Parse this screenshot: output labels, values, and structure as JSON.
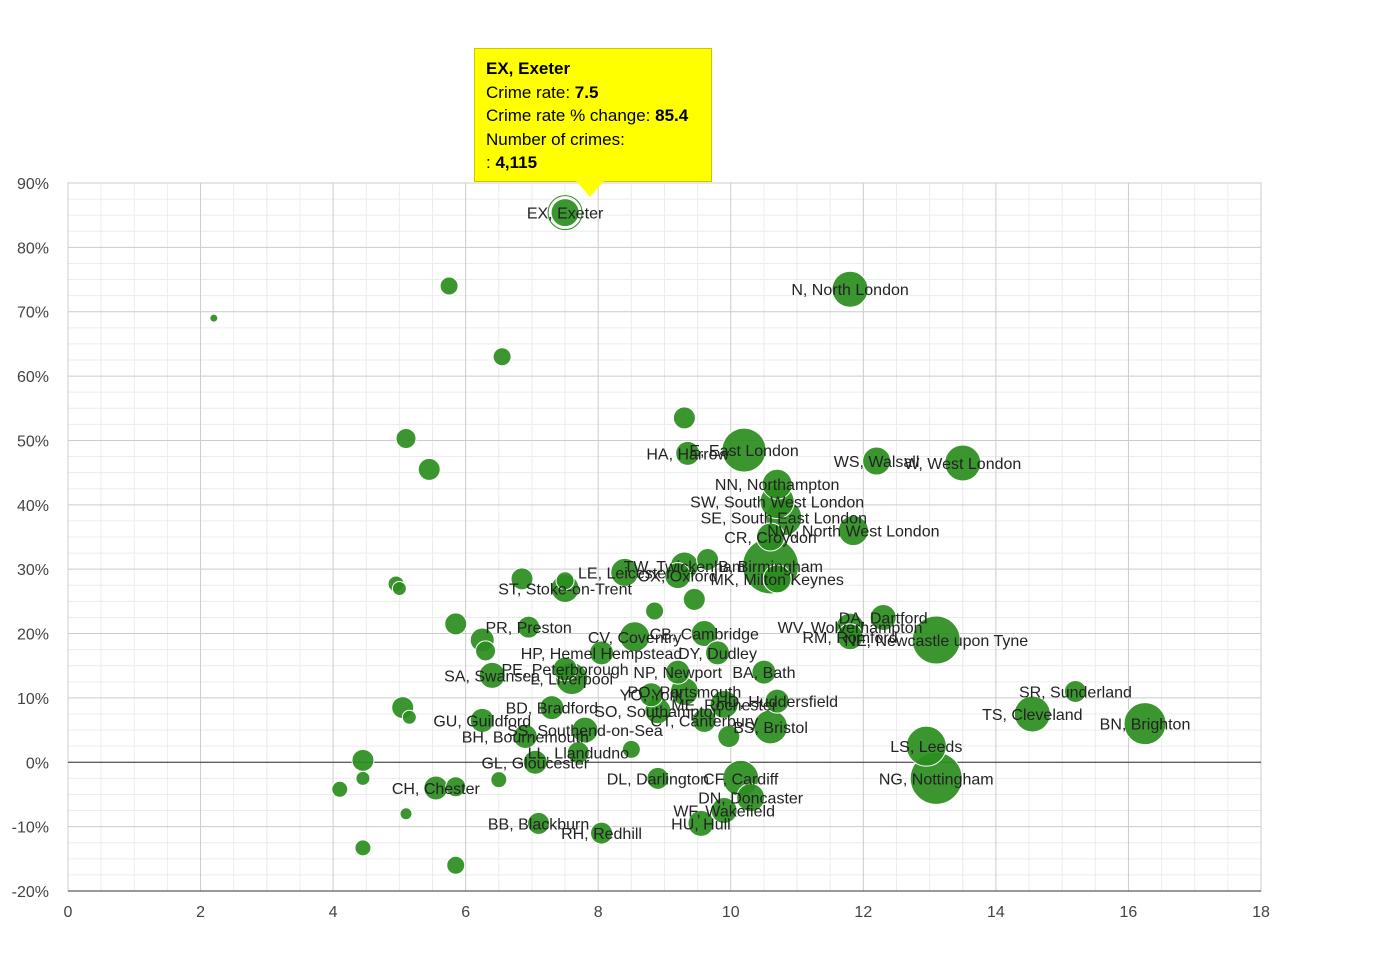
{
  "tooltip": {
    "title": "EX, Exeter",
    "rate_label": "Crime rate: ",
    "rate_value": "7.5",
    "change_label": "Crime rate % change: ",
    "change_value": "85.4",
    "count_label": "Number of crimes:",
    "count_prefix": ": ",
    "count_value": "4,115"
  },
  "chart_data": {
    "type": "scatter",
    "subtype": "bubble",
    "title": "",
    "xlabel": "",
    "ylabel": "",
    "xlim": [
      0,
      18
    ],
    "ylim": [
      -20,
      90
    ],
    "x_ticks": [
      "0",
      "2",
      "4",
      "6",
      "8",
      "10",
      "12",
      "14",
      "16",
      "18"
    ],
    "y_ticks": [
      "-20%",
      "-10%",
      "0%",
      "10%",
      "20%",
      "30%",
      "40%",
      "50%",
      "60%",
      "70%",
      "80%",
      "90%"
    ],
    "grid": true,
    "bubble_color": "#2a8d1e",
    "points": [
      {
        "label": "EX, Exeter",
        "x": 7.5,
        "y": 85.4,
        "size": 14,
        "highlight": true
      },
      {
        "label": "N, North London",
        "x": 11.8,
        "y": 73.5,
        "size": 18
      },
      {
        "label": "E, East London",
        "x": 10.2,
        "y": 48.5,
        "size": 22
      },
      {
        "label": "HA, Harrow",
        "x": 9.35,
        "y": 48,
        "size": 12
      },
      {
        "label": "WS, Walsall",
        "x": 12.2,
        "y": 46.8,
        "size": 14
      },
      {
        "label": "W, West London",
        "x": 13.5,
        "y": 46.5,
        "size": 18
      },
      {
        "label": "NN, Northampton",
        "x": 10.7,
        "y": 43.2,
        "size": 15
      },
      {
        "label": "SW, South West London",
        "x": 10.7,
        "y": 40.5,
        "size": 17
      },
      {
        "label": "SE, South East London",
        "x": 10.8,
        "y": 38,
        "size": 18
      },
      {
        "label": "NW, North West London",
        "x": 11.85,
        "y": 36,
        "size": 15
      },
      {
        "label": "CR, Croydon",
        "x": 10.6,
        "y": 35,
        "size": 14
      },
      {
        "label": "TW, Twickenham",
        "x": 9.3,
        "y": 30.5,
        "size": 14
      },
      {
        "label": "B, Birmingham",
        "x": 10.6,
        "y": 30.5,
        "size": 28
      },
      {
        "label": "MK, Milton Keynes",
        "x": 10.7,
        "y": 28.5,
        "size": 14
      },
      {
        "label": "OX, Oxford",
        "x": 9.2,
        "y": 29,
        "size": 13
      },
      {
        "label": "LE, Leicester",
        "x": 8.4,
        "y": 29.5,
        "size": 14
      },
      {
        "label": "ST, Stoke-on-Trent",
        "x": 7.5,
        "y": 27,
        "size": 14
      },
      {
        "label": "DA, Dartford",
        "x": 12.3,
        "y": 22.5,
        "size": 13
      },
      {
        "label": "WV, Wolverhampton",
        "x": 11.8,
        "y": 21,
        "size": 14
      },
      {
        "label": "RM, Romford",
        "x": 11.8,
        "y": 19.5,
        "size": 13
      },
      {
        "label": "NE, Newcastle upon Tyne",
        "x": 13.1,
        "y": 19,
        "size": 24
      },
      {
        "label": "CB, Cambridge",
        "x": 9.6,
        "y": 20,
        "size": 13
      },
      {
        "label": "CV, Coventry",
        "x": 8.55,
        "y": 19.5,
        "size": 15
      },
      {
        "label": "DY, Dudley",
        "x": 9.8,
        "y": 17,
        "size": 12
      },
      {
        "label": "PR, Preston",
        "x": 6.95,
        "y": 21,
        "size": 11
      },
      {
        "label": "HP, Hemel Hempstead",
        "x": 8.05,
        "y": 17,
        "size": 12
      },
      {
        "label": "PE, Peterborough",
        "x": 7.5,
        "y": 14.5,
        "size": 12
      },
      {
        "label": "NP, Newport",
        "x": 9.2,
        "y": 14,
        "size": 12
      },
      {
        "label": "BA, Bath",
        "x": 10.5,
        "y": 14,
        "size": 12
      },
      {
        "label": "SA, Swansea",
        "x": 6.4,
        "y": 13.5,
        "size": 13
      },
      {
        "label": "L, Liverpool",
        "x": 7.6,
        "y": 13,
        "size": 16
      },
      {
        "label": "PO, Portsmouth",
        "x": 9.3,
        "y": 11,
        "size": 14
      },
      {
        "label": "YO, York",
        "x": 8.8,
        "y": 10.5,
        "size": 12
      },
      {
        "label": "HD, Huddersfield",
        "x": 10.7,
        "y": 9.5,
        "size": 12
      },
      {
        "label": "ME, Rochester",
        "x": 9.9,
        "y": 9,
        "size": 14
      },
      {
        "label": "SR, Sunderland",
        "x": 15.2,
        "y": 11,
        "size": 11
      },
      {
        "label": "BD, Bradford",
        "x": 7.3,
        "y": 8.5,
        "size": 12
      },
      {
        "label": "SO, Southampton",
        "x": 8.9,
        "y": 8,
        "size": 13
      },
      {
        "label": "CT, Canterbury",
        "x": 9.6,
        "y": 6.5,
        "size": 12
      },
      {
        "label": "BS, Bristol",
        "x": 10.6,
        "y": 5.5,
        "size": 17
      },
      {
        "label": "TS, Cleveland",
        "x": 14.55,
        "y": 7.5,
        "size": 18
      },
      {
        "label": "BN, Brighton",
        "x": 16.25,
        "y": 6,
        "size": 21
      },
      {
        "label": "GU, Guildford",
        "x": 6.25,
        "y": 6.5,
        "size": 12
      },
      {
        "label": "SS, Southend-on-Sea",
        "x": 7.8,
        "y": 5,
        "size": 13
      },
      {
        "label": "BH, Bournemouth",
        "x": 6.9,
        "y": 4,
        "size": 12
      },
      {
        "label": "LS, Leeds",
        "x": 12.95,
        "y": 2.5,
        "size": 20
      },
      {
        "label": "LL, Llandudno",
        "x": 7.7,
        "y": 1.5,
        "size": 11
      },
      {
        "label": "GL, Gloucester",
        "x": 7.05,
        "y": 0,
        "size": 12
      },
      {
        "label": "DL, Darlington",
        "x": 8.9,
        "y": -2.5,
        "size": 11
      },
      {
        "label": "CF, Cardiff",
        "x": 10.15,
        "y": -2.5,
        "size": 18
      },
      {
        "label": "NG, Nottingham",
        "x": 13.1,
        "y": -2.5,
        "size": 26
      },
      {
        "label": "CH, Chester",
        "x": 5.55,
        "y": -4,
        "size": 12
      },
      {
        "label": "DN, Doncaster",
        "x": 10.3,
        "y": -5.5,
        "size": 14
      },
      {
        "label": "WF, Wakefield",
        "x": 9.9,
        "y": -7.5,
        "size": 13
      },
      {
        "label": "HU, Hull",
        "x": 9.55,
        "y": -9.5,
        "size": 13
      },
      {
        "label": "BB, Blackburn",
        "x": 7.1,
        "y": -9.5,
        "size": 11
      },
      {
        "label": "RH, Redhill",
        "x": 8.05,
        "y": -11,
        "size": 11
      },
      {
        "label": "",
        "x": 2.2,
        "y": 69,
        "size": 4
      },
      {
        "label": "",
        "x": 5.75,
        "y": 74,
        "size": 9
      },
      {
        "label": "",
        "x": 6.55,
        "y": 63,
        "size": 9
      },
      {
        "label": "",
        "x": 9.3,
        "y": 53.5,
        "size": 11
      },
      {
        "label": "",
        "x": 5.1,
        "y": 50.3,
        "size": 10
      },
      {
        "label": "",
        "x": 5.45,
        "y": 45.5,
        "size": 11
      },
      {
        "label": "",
        "x": 9.65,
        "y": 31.5,
        "size": 11
      },
      {
        "label": "",
        "x": 6.85,
        "y": 28.5,
        "size": 11
      },
      {
        "label": "",
        "x": 7.5,
        "y": 28.2,
        "size": 9
      },
      {
        "label": "",
        "x": 4.95,
        "y": 27.7,
        "size": 8
      },
      {
        "label": "",
        "x": 5.0,
        "y": 27.0,
        "size": 7
      },
      {
        "label": "",
        "x": 9.45,
        "y": 25.3,
        "size": 11
      },
      {
        "label": "",
        "x": 8.85,
        "y": 23.5,
        "size": 9
      },
      {
        "label": "",
        "x": 5.85,
        "y": 21.5,
        "size": 11
      },
      {
        "label": "",
        "x": 6.25,
        "y": 19,
        "size": 12
      },
      {
        "label": "",
        "x": 6.3,
        "y": 17.3,
        "size": 10
      },
      {
        "label": "",
        "x": 5.05,
        "y": 8.5,
        "size": 11
      },
      {
        "label": "",
        "x": 5.15,
        "y": 7,
        "size": 7
      },
      {
        "label": "",
        "x": 8.5,
        "y": 2,
        "size": 9
      },
      {
        "label": "",
        "x": 9.97,
        "y": 4,
        "size": 11
      },
      {
        "label": "",
        "x": 4.45,
        "y": 0.3,
        "size": 11
      },
      {
        "label": "",
        "x": 4.45,
        "y": -2.5,
        "size": 7
      },
      {
        "label": "",
        "x": 4.1,
        "y": -4.2,
        "size": 8
      },
      {
        "label": "",
        "x": 5.85,
        "y": -3.8,
        "size": 10
      },
      {
        "label": "",
        "x": 6.5,
        "y": -2.7,
        "size": 8
      },
      {
        "label": "",
        "x": 5.1,
        "y": -8,
        "size": 6
      },
      {
        "label": "",
        "x": 4.45,
        "y": -13.3,
        "size": 8
      },
      {
        "label": "",
        "x": 5.85,
        "y": -16,
        "size": 9
      }
    ]
  }
}
